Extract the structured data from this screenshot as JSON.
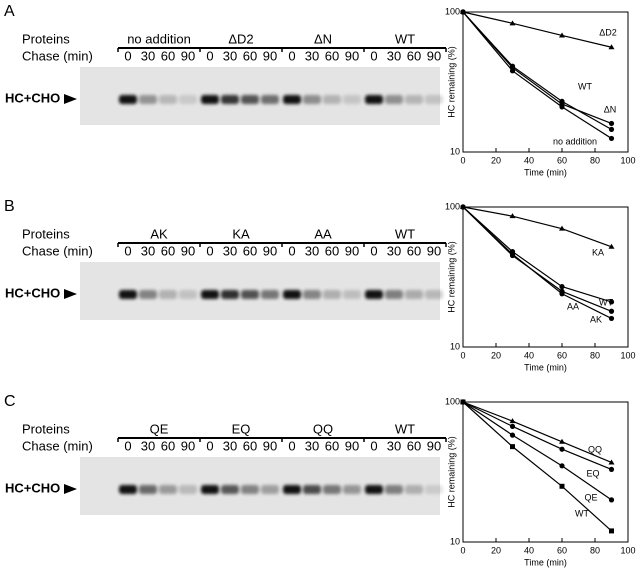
{
  "panels": [
    {
      "letter": "A",
      "proteins_label": "Proteins",
      "chase_label": "Chase (min)",
      "band_label": "HC+CHO"
    },
    {
      "letter": "B",
      "proteins_label": "Proteins",
      "chase_label": "Chase (min)",
      "band_label": "HC+CHO"
    },
    {
      "letter": "C",
      "proteins_label": "Proteins",
      "chase_label": "Chase (min)",
      "band_label": "HC+CHO"
    }
  ],
  "chart_data": [
    {
      "type": "line",
      "x": [
        0,
        30,
        60,
        90
      ],
      "xlim": [
        0,
        100
      ],
      "xticks": [
        0,
        20,
        40,
        60,
        80,
        100
      ],
      "ylim": [
        10,
        100
      ],
      "yticks": [
        10,
        100
      ],
      "log_scale": true,
      "xlabel": "Time (min)",
      "ylabel": "HC remaining (%)",
      "series": [
        {
          "name": "no addition",
          "color": "#000000",
          "marker": "circle",
          "values": [
            100,
            38,
            21,
            12.5
          ]
        },
        {
          "name": "ΔD2",
          "color": "#000000",
          "marker": "triangle",
          "values": [
            100,
            83,
            68,
            56
          ]
        },
        {
          "name": "ΔN",
          "color": "#000000",
          "marker": "circle",
          "values": [
            100,
            41,
            23,
            14.5
          ]
        },
        {
          "name": "WT",
          "color": "#000000",
          "marker": "circle",
          "values": [
            100,
            40,
            22,
            16
          ]
        }
      ]
    },
    {
      "type": "line",
      "x": [
        0,
        30,
        60,
        90
      ],
      "xlim": [
        0,
        100
      ],
      "xticks": [
        0,
        20,
        40,
        60,
        80,
        100
      ],
      "ylim": [
        10,
        100
      ],
      "yticks": [
        10,
        100
      ],
      "log_scale": true,
      "xlabel": "Time (min)",
      "ylabel": "HC remaining (%)",
      "series": [
        {
          "name": "AK",
          "color": "#000000",
          "marker": "circle",
          "values": [
            100,
            46,
            24,
            16
          ]
        },
        {
          "name": "KA",
          "color": "#000000",
          "marker": "triangle",
          "values": [
            100,
            86,
            70,
            52
          ]
        },
        {
          "name": "AA",
          "color": "#000000",
          "marker": "circle",
          "values": [
            100,
            45,
            25,
            18
          ]
        },
        {
          "name": "WT",
          "color": "#000000",
          "marker": "circle",
          "values": [
            100,
            48,
            27,
            21
          ]
        }
      ]
    },
    {
      "type": "line",
      "x": [
        0,
        30,
        60,
        90
      ],
      "xlim": [
        0,
        100
      ],
      "xticks": [
        0,
        20,
        40,
        60,
        80,
        100
      ],
      "ylim": [
        10,
        100
      ],
      "yticks": [
        10,
        100
      ],
      "log_scale": true,
      "xlabel": "Time (min)",
      "ylabel": "HC remaining (%)",
      "series": [
        {
          "name": "QE",
          "color": "#000000",
          "marker": "circle",
          "values": [
            100,
            58,
            35,
            20
          ]
        },
        {
          "name": "EQ",
          "color": "#000000",
          "marker": "circle",
          "values": [
            100,
            67,
            46,
            33
          ]
        },
        {
          "name": "QQ",
          "color": "#000000",
          "marker": "triangle",
          "values": [
            100,
            73,
            52,
            37
          ]
        },
        {
          "name": "WT",
          "color": "#000000",
          "marker": "square",
          "values": [
            100,
            48,
            25,
            12
          ]
        }
      ]
    }
  ]
}
